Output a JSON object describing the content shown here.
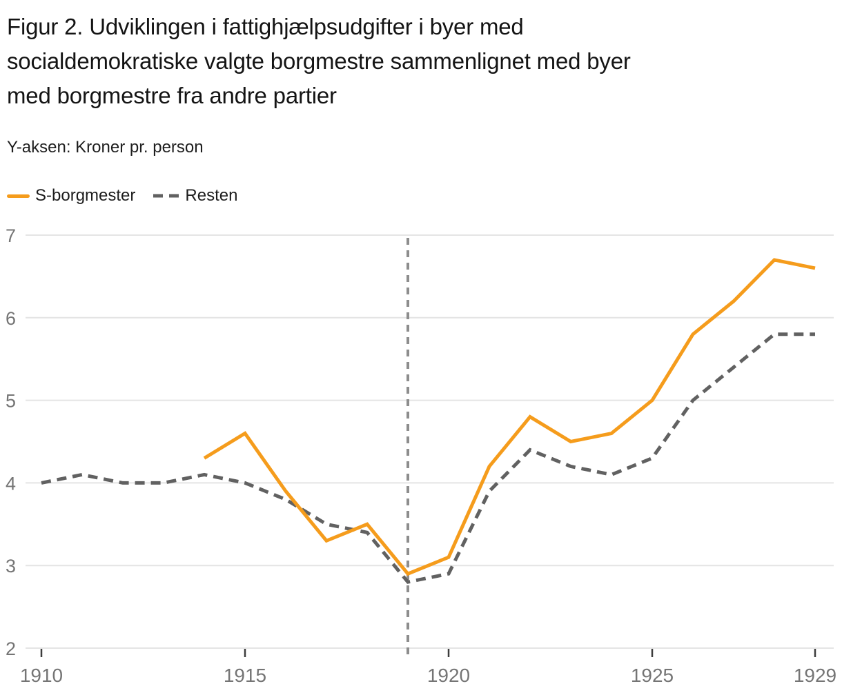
{
  "header": {
    "title": "Figur 2. Udviklingen i fattighjælpsudgifter i byer med socialdemokratiske valgte borgmestre sammenlignet med byer med borgmestre fra andre partier",
    "title_lines": [
      "Figur 2. Udviklingen i fattighjælpsudgifter i byer med",
      "socialdemokratiske valgte borgmestre sammenlignet med byer",
      "med borgmestre fra andre partier"
    ],
    "subtitle": "Y-aksen: Kroner pr. person"
  },
  "legend": [
    {
      "label": "S-borgmester",
      "color": "#F59C1C",
      "style": "solid"
    },
    {
      "label": "Resten",
      "color": "#616161",
      "style": "dashed"
    }
  ],
  "chart_data": {
    "type": "line",
    "title": "Figur 2. Udviklingen i fattighjælpsudgifter i byer med socialdemokratiske valgte borgmestre sammenlignet med byer med borgmestre fra andre partier",
    "ylabel": "Kroner pr. person",
    "xlabel": "",
    "xlim": [
      1910,
      1929
    ],
    "ylim": [
      2,
      7
    ],
    "x_ticks": [
      1910,
      1915,
      1920,
      1925,
      1929
    ],
    "y_ticks": [
      2,
      3,
      4,
      5,
      6,
      7
    ],
    "grid": true,
    "legend_position": "top-left",
    "vline_x": 1919,
    "series": [
      {
        "name": "S-borgmester",
        "color": "#F59C1C",
        "dash": false,
        "x": [
          1914,
          1915,
          1916,
          1917,
          1918,
          1919,
          1920,
          1921,
          1922,
          1923,
          1924,
          1925,
          1926,
          1927,
          1928,
          1929
        ],
        "values": [
          4.3,
          4.6,
          3.9,
          3.3,
          3.5,
          2.9,
          3.1,
          4.2,
          4.8,
          4.5,
          4.6,
          5.0,
          5.8,
          6.2,
          6.7,
          6.6
        ]
      },
      {
        "name": "Resten",
        "color": "#616161",
        "dash": true,
        "x": [
          1910,
          1911,
          1912,
          1913,
          1914,
          1915,
          1916,
          1917,
          1918,
          1919,
          1920,
          1921,
          1922,
          1923,
          1924,
          1925,
          1926,
          1927,
          1928,
          1929
        ],
        "values": [
          4.0,
          4.1,
          4.0,
          4.0,
          4.1,
          4.0,
          3.8,
          3.5,
          3.4,
          2.8,
          2.9,
          3.9,
          4.4,
          4.2,
          4.1,
          4.3,
          5.0,
          5.4,
          5.8,
          5.8
        ]
      }
    ],
    "colors": {
      "gridline": "#e4e4e4",
      "axis_tick": "#3d3d3d",
      "axis_label": "#757575",
      "vline": "#8d8d8d"
    }
  }
}
